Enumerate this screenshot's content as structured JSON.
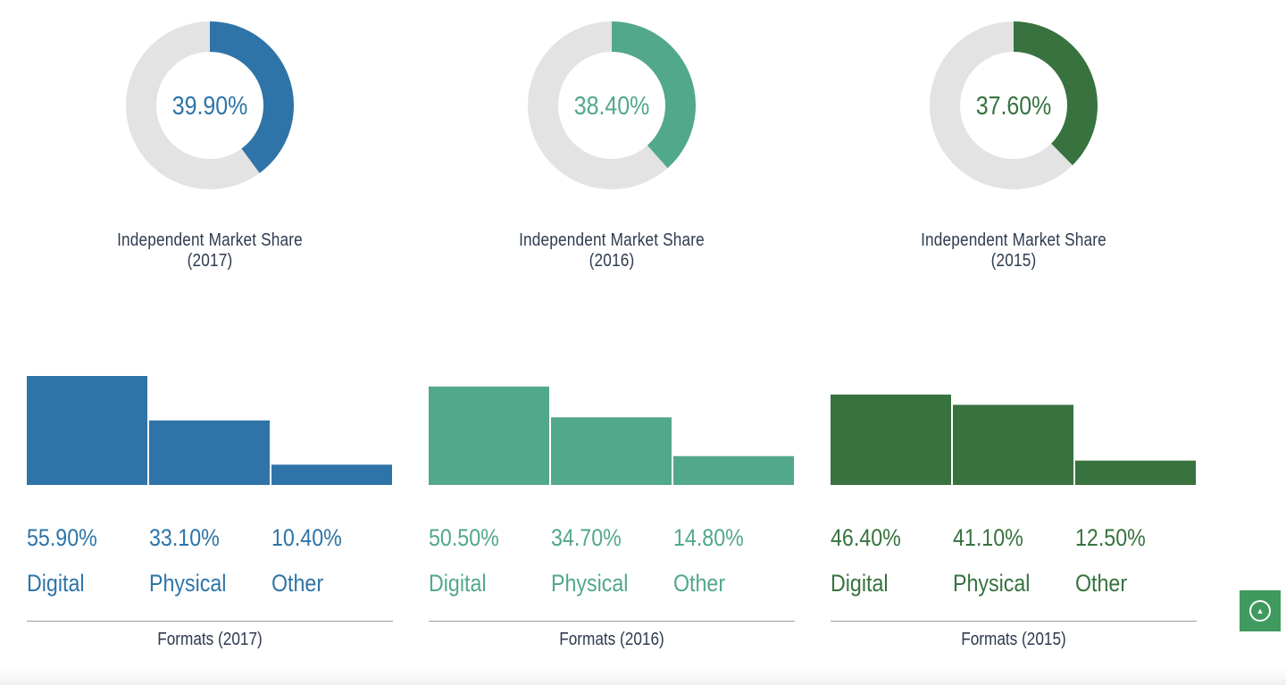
{
  "chart_data": [
    {
      "type": "pie",
      "title": "Independent Market Share (2017)",
      "label": "39.90%",
      "value": 39.9,
      "color": "#2e74a8"
    },
    {
      "type": "pie",
      "title": "Independent Market Share (2016)",
      "label": "38.40%",
      "value": 38.4,
      "color": "#52a88a"
    },
    {
      "type": "pie",
      "title": "Independent Market Share (2015)",
      "label": "37.60%",
      "value": 37.6,
      "color": "#37723f"
    },
    {
      "type": "bar",
      "title": "Formats (2017)",
      "categories": [
        "Digital",
        "Physical",
        "Other"
      ],
      "values": [
        55.9,
        33.1,
        10.4
      ],
      "value_labels": [
        "55.90%",
        "33.10%",
        "10.40%"
      ],
      "color": "#2e74a8"
    },
    {
      "type": "bar",
      "title": "Formats (2016)",
      "categories": [
        "Digital",
        "Physical",
        "Other"
      ],
      "values": [
        50.5,
        34.7,
        14.8
      ],
      "value_labels": [
        "50.50%",
        "34.70%",
        "14.80%"
      ],
      "color": "#52a88a"
    },
    {
      "type": "bar",
      "title": "Formats (2015)",
      "categories": [
        "Digital",
        "Physical",
        "Other"
      ],
      "values": [
        46.4,
        41.1,
        12.5
      ],
      "value_labels": [
        "46.40%",
        "41.10%",
        "12.50%"
      ],
      "color": "#37723f"
    }
  ],
  "scroll_top_icon": "chevron-up-circle-icon",
  "colors": {
    "track": "#e3e3e3",
    "caption": "#2d3a4f",
    "scroll_button": "#3f9a5e"
  }
}
